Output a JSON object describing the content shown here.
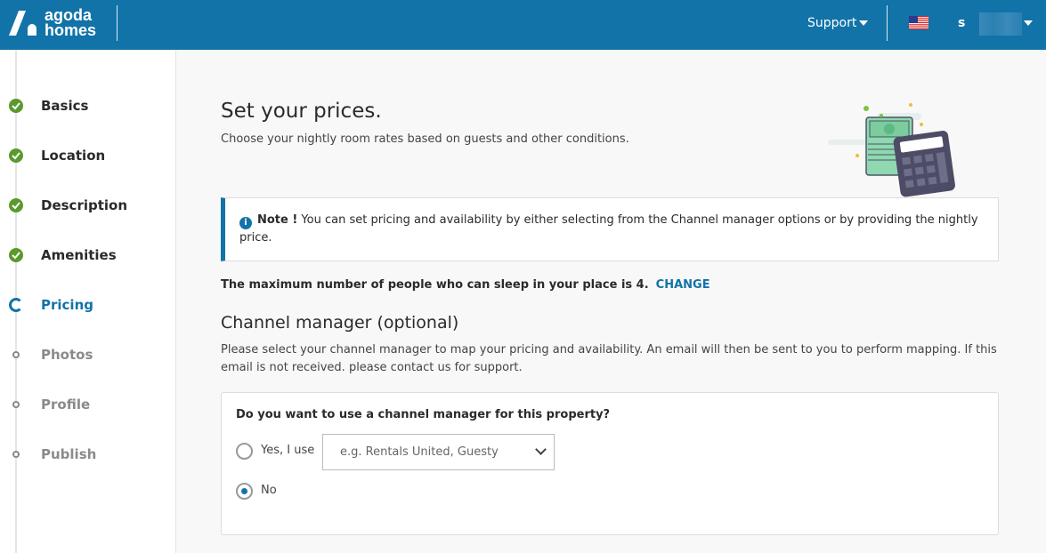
{
  "header": {
    "logo_text_1": "agoda",
    "logo_text_2": "homes",
    "support": "Support",
    "user_initial": "s",
    "flag": "us-flag-icon"
  },
  "sidebar": {
    "items": [
      {
        "label": "Basics",
        "status": "done"
      },
      {
        "label": "Location",
        "status": "done"
      },
      {
        "label": "Description",
        "status": "done"
      },
      {
        "label": "Amenities",
        "status": "done"
      },
      {
        "label": "Pricing",
        "status": "current"
      },
      {
        "label": "Photos",
        "status": "todo"
      },
      {
        "label": "Profile",
        "status": "todo"
      },
      {
        "label": "Publish",
        "status": "todo"
      }
    ]
  },
  "main": {
    "title": "Set your prices.",
    "subtitle": "Choose your nightly room rates based on guests and other conditions.",
    "note_label": "Note !",
    "note_text": " You can set pricing and availability by either selecting from the Channel manager options or by providing the nightly price.",
    "max_people": "The maximum number of people who can sleep in your place is 4.",
    "change": "CHANGE",
    "channel_title": "Channel manager (optional)",
    "channel_desc": "Please select your channel manager to map your pricing and availability. An email will then be sent to you to perform mapping. If this email is not received. please contact us for support.",
    "question": "Do you want to use a channel manager for this property?",
    "yes_label": "Yes, I use",
    "select_placeholder": "e.g. Rentals United, Guesty",
    "no_label": "No",
    "selected": "No"
  },
  "colors": {
    "brand": "#1273a8",
    "done": "#5a9a2c"
  }
}
